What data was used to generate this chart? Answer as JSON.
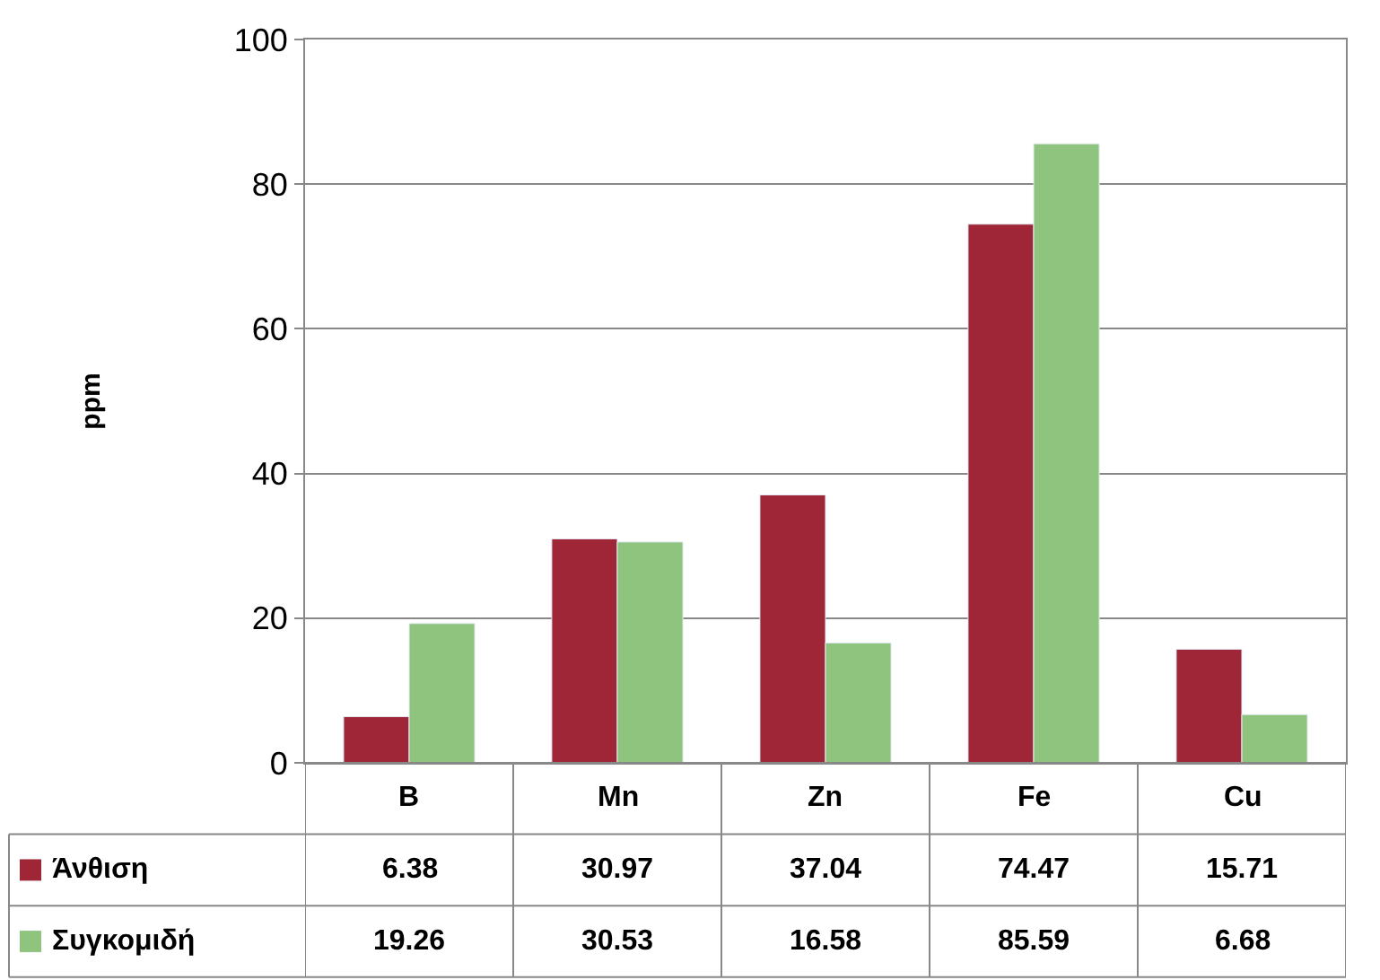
{
  "chart_data": {
    "type": "bar",
    "ylabel": "ppm",
    "categories": [
      "B",
      "Mn",
      "Zn",
      "Fe",
      "Cu"
    ],
    "series": [
      {
        "name": "Άνθιση",
        "color": "#9e2636",
        "values": [
          6.38,
          30.97,
          37.04,
          74.47,
          15.71
        ]
      },
      {
        "name": "Συγκομιδή",
        "color": "#8fc47f",
        "values": [
          19.26,
          30.53,
          16.58,
          85.59,
          6.68
        ]
      }
    ],
    "ylim": [
      0,
      100
    ],
    "yticks": [
      0,
      20,
      40,
      60,
      80,
      100
    ],
    "grid": "y",
    "legend": "bottom left",
    "data_labels": true
  }
}
